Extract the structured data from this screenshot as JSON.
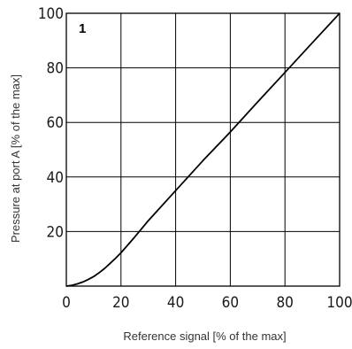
{
  "chart_data": {
    "type": "line",
    "title": "",
    "panel_label": "1",
    "xlabel": "Reference signal [% of the max]",
    "ylabel": "Pressure at port A [% of the max]",
    "xlim": [
      0,
      100
    ],
    "ylim": [
      0,
      100
    ],
    "xticks": [
      0,
      20,
      40,
      60,
      80,
      100
    ],
    "yticks": [
      20,
      40,
      60,
      80,
      100
    ],
    "grid": true,
    "legend": "none",
    "series": [
      {
        "color": "#000000",
        "x": [
          0,
          2,
          4,
          6,
          8,
          10,
          12,
          14,
          16,
          18,
          20,
          25,
          30,
          40,
          50,
          60,
          70,
          80,
          90,
          100
        ],
        "y": [
          0,
          0.3,
          0.8,
          1.5,
          2.4,
          3.5,
          4.9,
          6.5,
          8.3,
          10.2,
          12.2,
          18.0,
          24.0,
          35.0,
          46.0,
          56.5,
          67.5,
          78.3,
          89.2,
          100
        ]
      }
    ]
  }
}
